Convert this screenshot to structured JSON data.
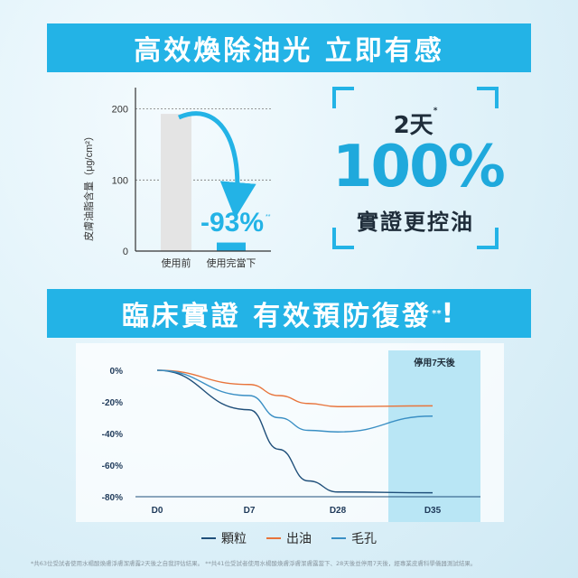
{
  "banners": {
    "top": "高效煥除油光 立即有感",
    "middle": "臨床實證 有效預防復發",
    "middle_mark": "**",
    "middle_excl": "!"
  },
  "claim": {
    "days": "2天",
    "days_mark": "*",
    "percent": "100%",
    "text": "實證更控油"
  },
  "colors": {
    "accent": "#23b3e6",
    "bar_before": "#e4e4e4",
    "bar_after": "#23b3e6",
    "series_granule": "#1f4f7a",
    "series_oil": "#e8743b",
    "series_pore": "#3a8fc4",
    "shade": "#b9e6f5"
  },
  "chart_data": [
    {
      "type": "bar",
      "ylabel": "皮膚油脂含量（μg/cm²）",
      "categories": [
        "使用前",
        "使用完當下"
      ],
      "values": [
        193,
        12
      ],
      "ylim": [
        0,
        230
      ],
      "yticks": [
        "200",
        "100",
        "0"
      ],
      "yticks_values": [
        200,
        100,
        0
      ],
      "grid": true,
      "annotation": "-93%",
      "annotation_mark": "**"
    },
    {
      "type": "line",
      "categories": [
        "D0",
        "D7",
        "D28",
        "D35"
      ],
      "x": [
        0,
        7,
        28,
        35
      ],
      "ylim": [
        -80,
        0
      ],
      "yticks": [
        "0%",
        "-20%",
        "-40%",
        "-60%",
        "-80%"
      ],
      "yticks_values": [
        0,
        -20,
        -40,
        -60,
        -80
      ],
      "shaded_label": "停用7天後",
      "shaded_from": 28,
      "series": [
        {
          "name": "顆粒",
          "x": [
            0,
            7,
            14,
            21,
            28,
            35
          ],
          "values": [
            0,
            -25,
            -50,
            -70,
            -77,
            -77.5
          ]
        },
        {
          "name": "出油",
          "x": [
            0,
            7,
            14,
            21,
            28,
            35
          ],
          "values": [
            0,
            -9,
            -16,
            -21,
            -23,
            -22.5
          ]
        },
        {
          "name": "毛孔",
          "x": [
            0,
            7,
            14,
            21,
            28,
            35
          ],
          "values": [
            0,
            -16,
            -30,
            -38,
            -39,
            -29
          ]
        }
      ]
    }
  ],
  "footnote": "*共63位受試者使用水楊酸煥膚淨膚潔膚露2天後之自我評估結果。 **共41位受試者使用水楊酸煥膚淨膚潔膚露當下、28天後並停用7天後，經專業皮膚科學儀器測試結果。"
}
